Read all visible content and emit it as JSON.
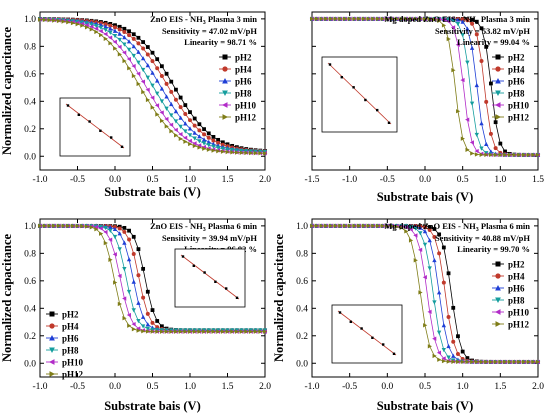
{
  "chart_data": [
    {
      "type": "line",
      "title_parts": [
        "ZnO EIS - NH",
        "3",
        " Plasma 3 min"
      ],
      "sensitivity": "Sensitivity = 47.02 mV/pH",
      "linearity": "Linearity = 98.71 %",
      "xlabel": "Substrate bais (V)",
      "ylabel": "Normalized capacitance",
      "xlim": [
        -1.0,
        2.0
      ],
      "ylim": [
        -0.1,
        1.05
      ],
      "xticks": [
        "-1.0",
        "-0.5",
        "0.0",
        "0.5",
        "1.0",
        "1.5",
        "2.0"
      ],
      "yticks": [
        "0.0",
        "0.2",
        "0.4",
        "0.6",
        "0.8",
        "1.0"
      ],
      "legend_position": "right",
      "inset_position": "lower-left",
      "series": [
        {
          "name": "pH2",
          "color": "#000000",
          "marker": "square",
          "mid": 0.78,
          "width": 0.26,
          "low": 0.03
        },
        {
          "name": "pH4",
          "color": "#c0392b",
          "marker": "circle",
          "mid": 0.7,
          "width": 0.26,
          "low": 0.03
        },
        {
          "name": "pH6",
          "color": "#1f3fd6",
          "marker": "triangle-up",
          "mid": 0.6,
          "width": 0.26,
          "low": 0.03
        },
        {
          "name": "pH8",
          "color": "#159e9e",
          "marker": "triangle-down",
          "mid": 0.5,
          "width": 0.26,
          "low": 0.03
        },
        {
          "name": "pH10",
          "color": "#b22cc8",
          "marker": "triangle-left",
          "mid": 0.41,
          "width": 0.26,
          "low": 0.02
        },
        {
          "name": "pH12",
          "color": "#7f7d18",
          "marker": "triangle-right",
          "mid": 0.33,
          "width": 0.26,
          "low": 0.02
        }
      ]
    },
    {
      "type": "line",
      "title_parts": [
        "Mg doped ZnO EIS - NH",
        "3",
        " Plasma 3 min"
      ],
      "sensitivity": "Sensitivity = 53.82 mV/pH",
      "linearity": "Linearity = 99.04 %",
      "xlabel": "Substrate bais (V)",
      "ylabel": "",
      "xlim": [
        -1.5,
        1.5
      ],
      "ylim": [
        -0.1,
        1.05
      ],
      "xticks": [
        "-1.5",
        "-1.0",
        "-0.5",
        "0.0",
        "0.5",
        "1.0",
        "1.5"
      ],
      "yticks": [],
      "legend_position": "right",
      "inset_position": "center",
      "series": [
        {
          "name": "pH2",
          "color": "#000000",
          "marker": "square",
          "mid": 0.88,
          "width": 0.05,
          "low": 0.01
        },
        {
          "name": "pH4",
          "color": "#c0392b",
          "marker": "circle",
          "mid": 0.79,
          "width": 0.05,
          "low": 0.01
        },
        {
          "name": "pH6",
          "color": "#1f3fd6",
          "marker": "triangle-up",
          "mid": 0.69,
          "width": 0.05,
          "low": 0.01
        },
        {
          "name": "pH8",
          "color": "#159e9e",
          "marker": "triangle-down",
          "mid": 0.6,
          "width": 0.05,
          "low": 0.01
        },
        {
          "name": "pH10",
          "color": "#b22cc8",
          "marker": "triangle-left",
          "mid": 0.51,
          "width": 0.05,
          "low": 0.01
        },
        {
          "name": "pH12",
          "color": "#7f7d18",
          "marker": "triangle-right",
          "mid": 0.4,
          "width": 0.05,
          "low": 0.01
        }
      ]
    },
    {
      "type": "line",
      "title_parts": [
        "ZnO EIS - NH",
        "3",
        " Plasma 6 min"
      ],
      "sensitivity": "Sensitivity = 39.94 mV/pH",
      "linearity": "Linearity = 96.92 %",
      "xlabel": "Substrate bais (V)",
      "ylabel": "Normalized capacitance",
      "xlim": [
        -1.0,
        2.0
      ],
      "ylim": [
        -0.1,
        1.05
      ],
      "xticks": [
        "-1.0",
        "-0.5",
        "0.0",
        "0.5",
        "1.0",
        "1.5",
        "2.0"
      ],
      "yticks": [
        "0.0",
        "0.2",
        "0.4",
        "0.6",
        "0.8",
        "1.0"
      ],
      "legend_position": "left",
      "inset_position": "upper-right",
      "series": [
        {
          "name": "pH2",
          "color": "#000000",
          "marker": "square",
          "mid": 0.4,
          "width": 0.07,
          "low": 0.24
        },
        {
          "name": "pH4",
          "color": "#c0392b",
          "marker": "circle",
          "mid": 0.32,
          "width": 0.07,
          "low": 0.24
        },
        {
          "name": "pH6",
          "color": "#1f3fd6",
          "marker": "triangle-up",
          "mid": 0.24,
          "width": 0.07,
          "low": 0.24
        },
        {
          "name": "pH8",
          "color": "#159e9e",
          "marker": "triangle-down",
          "mid": 0.15,
          "width": 0.07,
          "low": 0.24
        },
        {
          "name": "pH10",
          "color": "#b22cc8",
          "marker": "triangle-left",
          "mid": 0.07,
          "width": 0.07,
          "low": 0.23
        },
        {
          "name": "pH12",
          "color": "#7f7d18",
          "marker": "triangle-right",
          "mid": -0.01,
          "width": 0.07,
          "low": 0.23
        }
      ]
    },
    {
      "type": "line",
      "title_parts": [
        "Mg doped ZnO EIS - NH",
        "3",
        " Plasma 6 min"
      ],
      "sensitivity": "Sensitivity = 40.88 mV/pH",
      "linearity": "Linearity = 99.70 %",
      "xlabel": "Substrate bais (V)",
      "ylabel": "Normalized capacitance",
      "xlim": [
        -1.0,
        2.0
      ],
      "ylim": [
        -0.1,
        1.05
      ],
      "xticks": [
        "-1.0",
        "-0.5",
        "0.0",
        "0.5",
        "1.0",
        "1.5",
        "2.0"
      ],
      "yticks": [
        "0.0",
        "0.2",
        "0.4",
        "0.6",
        "0.8",
        "1.0"
      ],
      "legend_position": "right",
      "inset_position": "lower-left",
      "series": [
        {
          "name": "pH2",
          "color": "#000000",
          "marker": "square",
          "mid": 0.85,
          "width": 0.06,
          "low": 0.01
        },
        {
          "name": "pH4",
          "color": "#c0392b",
          "marker": "circle",
          "mid": 0.77,
          "width": 0.06,
          "low": 0.01
        },
        {
          "name": "pH6",
          "color": "#1f3fd6",
          "marker": "triangle-up",
          "mid": 0.69,
          "width": 0.06,
          "low": 0.01
        },
        {
          "name": "pH8",
          "color": "#159e9e",
          "marker": "triangle-down",
          "mid": 0.61,
          "width": 0.06,
          "low": 0.01
        },
        {
          "name": "pH10",
          "color": "#b22cc8",
          "marker": "triangle-left",
          "mid": 0.53,
          "width": 0.06,
          "low": 0.01
        },
        {
          "name": "pH12",
          "color": "#7f7d18",
          "marker": "triangle-right",
          "mid": 0.44,
          "width": 0.06,
          "low": 0.01
        }
      ]
    }
  ]
}
